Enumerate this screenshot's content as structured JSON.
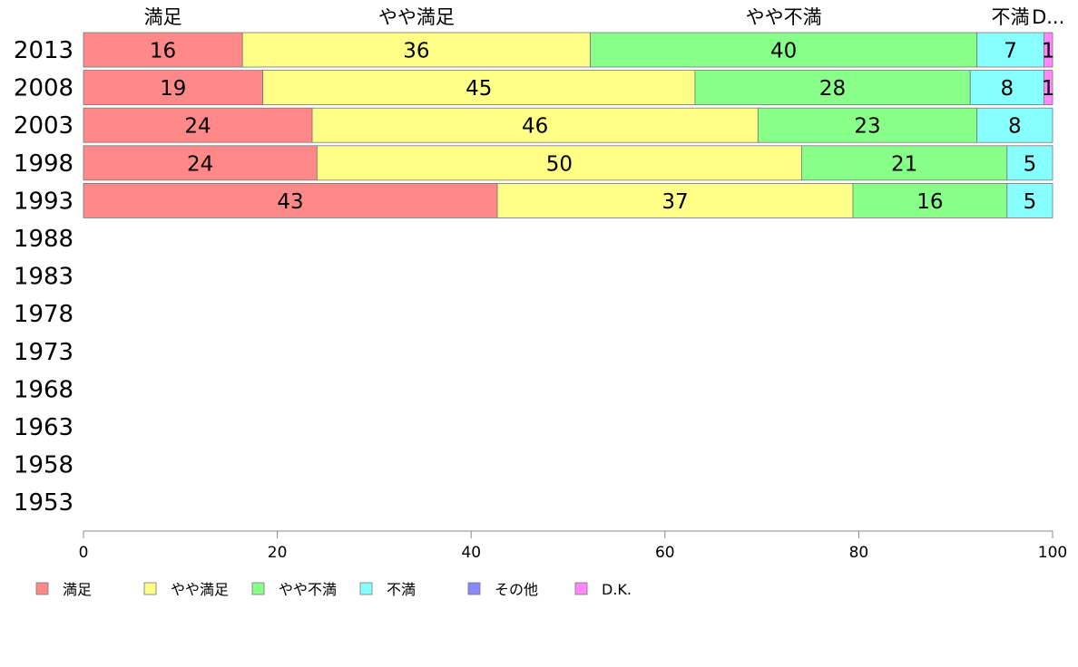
{
  "chart_data": {
    "type": "bar",
    "orientation": "horizontal",
    "stacked": true,
    "categories": [
      "2013",
      "2008",
      "2003",
      "1998",
      "1993",
      "1988",
      "1983",
      "1978",
      "1973",
      "1968",
      "1963",
      "1958",
      "1953"
    ],
    "series": [
      {
        "name": "満足",
        "color": "#ff8888",
        "values": [
          16.4,
          18.5,
          23.6,
          24.1,
          42.7,
          null,
          null,
          null,
          null,
          null,
          null,
          null,
          null
        ]
      },
      {
        "name": "やや満足",
        "color": "#ffff88",
        "values": [
          35.9,
          44.6,
          46.0,
          50.0,
          36.7,
          null,
          null,
          null,
          null,
          null,
          null,
          null,
          null
        ]
      },
      {
        "name": "やや不満",
        "color": "#88ff88",
        "values": [
          39.9,
          28.4,
          22.6,
          21.2,
          15.9,
          null,
          null,
          null,
          null,
          null,
          null,
          null,
          null
        ]
      },
      {
        "name": "不満",
        "color": "#88ffff",
        "values": [
          6.9,
          7.6,
          7.8,
          4.7,
          4.7,
          null,
          null,
          null,
          null,
          null,
          null,
          null,
          null
        ]
      },
      {
        "name": "その他",
        "color": "#8888ff",
        "values": [
          0,
          0,
          0,
          0,
          0,
          null,
          null,
          null,
          null,
          null,
          null,
          null,
          null
        ]
      },
      {
        "name": "D.K.",
        "color": "#ff88ff",
        "values": [
          0.9,
          0.9,
          0,
          0,
          0,
          null,
          null,
          null,
          null,
          null,
          null,
          null,
          null
        ]
      }
    ],
    "top_labels": [
      "満足",
      "やや満足",
      "やや不満",
      "不満",
      "D..."
    ],
    "xlim": [
      0,
      100
    ],
    "xticks": [
      0,
      20,
      40,
      60,
      80,
      100
    ],
    "grid": false,
    "legend_position": "bottom-left"
  }
}
